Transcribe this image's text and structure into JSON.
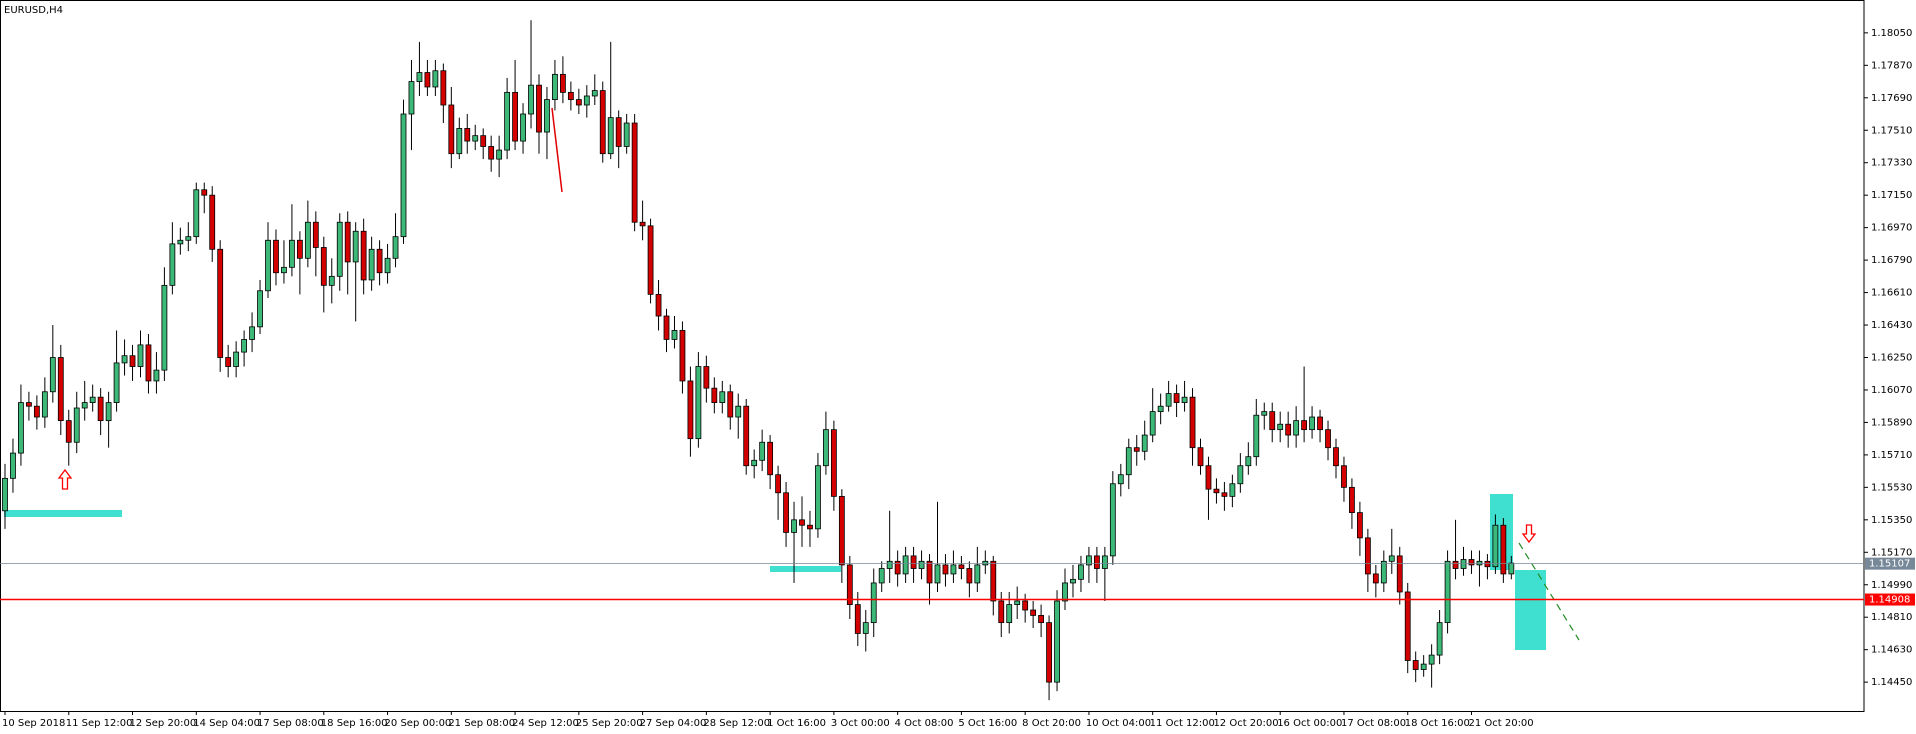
{
  "chart_data": {
    "type": "candlestick",
    "title": "EURUSD,H4",
    "categories": [
      "10 Sep 2018",
      null,
      null,
      null,
      null,
      null,
      null,
      null,
      "11 Sep 12:00",
      null,
      null,
      null,
      null,
      null,
      null,
      null,
      "12 Sep 20:00",
      null,
      null,
      null,
      null,
      null,
      null,
      null,
      "14 Sep 04:00",
      null,
      null,
      null,
      null,
      null,
      null,
      null,
      "17 Sep 08:00",
      null,
      null,
      null,
      null,
      null,
      null,
      null,
      "18 Sep 16:00",
      null,
      null,
      null,
      null,
      null,
      null,
      null,
      "20 Sep 00:00",
      null,
      null,
      null,
      null,
      null,
      null,
      null,
      "21 Sep 08:00",
      null,
      null,
      null,
      null,
      null,
      null,
      null,
      "24 Sep 12:00",
      null,
      null,
      null,
      null,
      null,
      null,
      null,
      "25 Sep 20:00",
      null,
      null,
      null,
      null,
      null,
      null,
      null,
      "27 Sep 04:00",
      null,
      null,
      null,
      null,
      null,
      null,
      null,
      "28 Sep 12:00",
      null,
      null,
      null,
      null,
      null,
      null,
      null,
      "1 Oct 16:00",
      null,
      null,
      null,
      null,
      null,
      null,
      null,
      "3 Oct 00:00",
      null,
      null,
      null,
      null,
      null,
      null,
      null,
      "4 Oct 08:00",
      null,
      null,
      null,
      null,
      null,
      null,
      null,
      "5 Oct 16:00",
      null,
      null,
      null,
      null,
      null,
      null,
      null,
      "8 Oct 20:00",
      null,
      null,
      null,
      null,
      null,
      null,
      null,
      "10 Oct 04:00",
      null,
      null,
      null,
      null,
      null,
      null,
      null,
      "11 Oct 12:00",
      null,
      null,
      null,
      null,
      null,
      null,
      null,
      "12 Oct 20:00",
      null,
      null,
      null,
      null,
      null,
      null,
      null,
      "16 Oct 00:00",
      null,
      null,
      null,
      null,
      null,
      null,
      null,
      "17 Oct 08:00",
      null,
      null,
      null,
      null,
      null,
      null,
      null,
      "18 Oct 16:00",
      null,
      null,
      null,
      null,
      null,
      null,
      null,
      "21 Oct 20:00",
      null,
      null,
      null,
      null,
      null
    ],
    "open": [
      1.154,
      1.1558,
      1.1572,
      1.16,
      1.1598,
      1.1592,
      1.1606,
      1.1625,
      1.159,
      1.1578,
      1.1597,
      1.16,
      1.1603,
      1.159,
      1.16,
      1.1622,
      1.1626,
      1.162,
      1.1632,
      1.1612,
      1.1618,
      1.1665,
      1.1688,
      1.169,
      1.1692,
      1.1718,
      1.1715,
      1.1685,
      1.1625,
      1.162,
      1.1628,
      1.1635,
      1.1642,
      1.1662,
      1.169,
      1.1672,
      1.1675,
      1.169,
      1.168,
      1.17,
      1.1686,
      1.1665,
      1.167,
      1.17,
      1.1678,
      1.1695,
      1.1668,
      1.1685,
      1.1672,
      1.168,
      1.1692,
      1.176,
      1.1778,
      1.1783,
      1.1775,
      1.1784,
      1.1765,
      1.1738,
      1.1752,
      1.1745,
      1.1748,
      1.1742,
      1.1735,
      1.174,
      1.1772,
      1.1745,
      1.176,
      1.1776,
      1.175,
      1.1768,
      1.1782,
      1.1772,
      1.1768,
      1.1765,
      1.177,
      1.1773,
      1.1738,
      1.1758,
      1.1742,
      1.1755,
      1.17,
      1.1698,
      1.166,
      1.1648,
      1.1635,
      1.164,
      1.1612,
      1.158,
      1.162,
      1.1608,
      1.16,
      1.1606,
      1.1592,
      1.1598,
      1.1565,
      1.1568,
      1.1578,
      1.156,
      1.155,
      1.1528,
      1.1535,
      1.1532,
      1.153,
      1.1565,
      1.1585,
      1.1548,
      1.151,
      1.1488,
      1.1472,
      1.1478,
      1.15,
      1.1508,
      1.1512,
      1.1505,
      1.1515,
      1.1508,
      1.1512,
      1.15,
      1.151,
      1.1505,
      1.151,
      1.1508,
      1.15,
      1.151,
      1.1512,
      1.149,
      1.1478,
      1.1488,
      1.149,
      1.1485,
      1.1482,
      1.1478,
      1.1445,
      1.149,
      1.15,
      1.1502,
      1.151,
      1.1515,
      1.1508,
      1.1515,
      1.1555,
      1.156,
      1.1575,
      1.1573,
      1.1582,
      1.1595,
      1.1598,
      1.1605,
      1.16,
      1.1603,
      1.1575,
      1.1565,
      1.1552,
      1.155,
      1.1548,
      1.1555,
      1.1565,
      1.157,
      1.1593,
      1.1595,
      1.1585,
      1.1588,
      1.1582,
      1.159,
      1.1585,
      1.1592,
      1.1585,
      1.1575,
      1.1565,
      1.1553,
      1.1539,
      1.1525,
      1.1505,
      1.15,
      1.1512,
      1.1515,
      1.1495,
      1.1457,
      1.1452,
      1.1455,
      1.146,
      1.1478,
      1.1512,
      1.1508,
      1.1513,
      1.151,
      1.1512,
      1.1509,
      1.1532,
      1.1505
    ],
    "high": [
      1.1566,
      1.158,
      1.161,
      1.1606,
      1.1604,
      1.1614,
      1.1643,
      1.1632,
      1.1596,
      1.1606,
      1.1612,
      1.161,
      1.1608,
      1.1606,
      1.164,
      1.1635,
      1.1632,
      1.164,
      1.1638,
      1.1628,
      1.1675,
      1.17,
      1.1697,
      1.17,
      1.1722,
      1.1722,
      1.172,
      1.169,
      1.1632,
      1.1634,
      1.164,
      1.165,
      1.1668,
      1.17,
      1.1696,
      1.169,
      1.171,
      1.1695,
      1.1712,
      1.1706,
      1.1692,
      1.168,
      1.1705,
      1.1706,
      1.17,
      1.1702,
      1.1692,
      1.169,
      1.1688,
      1.1705,
      1.1768,
      1.179,
      1.18,
      1.179,
      1.179,
      1.1788,
      1.1775,
      1.1758,
      1.176,
      1.1754,
      1.1752,
      1.1748,
      1.1748,
      1.178,
      1.179,
      1.1766,
      1.1812,
      1.1782,
      1.1775,
      1.179,
      1.1792,
      1.1778,
      1.1774,
      1.1776,
      1.1782,
      1.1778,
      1.18,
      1.1762,
      1.176,
      1.176,
      1.1712,
      1.1702,
      1.1668,
      1.1652,
      1.1648,
      1.1645,
      1.162,
      1.1628,
      1.1626,
      1.1614,
      1.1612,
      1.161,
      1.1605,
      1.1602,
      1.1574,
      1.1585,
      1.1582,
      1.1565,
      1.1556,
      1.1545,
      1.1548,
      1.154,
      1.1572,
      1.1595,
      1.159,
      1.1552,
      1.1515,
      1.1495,
      1.1485,
      1.1508,
      1.1512,
      1.154,
      1.1518,
      1.152,
      1.152,
      1.1518,
      1.1516,
      1.1545,
      1.1516,
      1.1518,
      1.1515,
      1.1512,
      1.152,
      1.1518,
      1.1515,
      1.1495,
      1.1495,
      1.1498,
      1.1494,
      1.149,
      1.1488,
      1.1482,
      1.1496,
      1.1508,
      1.151,
      1.1515,
      1.152,
      1.152,
      1.152,
      1.1562,
      1.1566,
      1.158,
      1.1582,
      1.159,
      1.1608,
      1.1605,
      1.1612,
      1.161,
      1.1612,
      1.1608,
      1.158,
      1.157,
      1.1558,
      1.1556,
      1.156,
      1.1572,
      1.1578,
      1.1602,
      1.16,
      1.16,
      1.1595,
      1.1595,
      1.1598,
      1.162,
      1.1598,
      1.1596,
      1.159,
      1.158,
      1.157,
      1.1558,
      1.1545,
      1.153,
      1.151,
      1.1518,
      1.153,
      1.152,
      1.15,
      1.1462,
      1.146,
      1.1466,
      1.1485,
      1.1518,
      1.1535,
      1.152,
      1.1518,
      1.1518,
      1.1516,
      1.1538,
      1.1536,
      1.1515
    ],
    "low": [
      1.153,
      1.155,
      1.1565,
      1.159,
      1.1585,
      1.1586,
      1.16,
      1.1582,
      1.1565,
      1.1572,
      1.159,
      1.1595,
      1.1582,
      1.1575,
      1.1595,
      1.1615,
      1.1612,
      1.1614,
      1.1605,
      1.1605,
      1.1612,
      1.166,
      1.1682,
      1.1684,
      1.1688,
      1.1705,
      1.1678,
      1.1617,
      1.1614,
      1.1614,
      1.162,
      1.1628,
      1.1638,
      1.1658,
      1.1665,
      1.1666,
      1.167,
      1.166,
      1.1675,
      1.167,
      1.165,
      1.1655,
      1.1662,
      1.166,
      1.1645,
      1.166,
      1.1662,
      1.1665,
      1.1666,
      1.1675,
      1.1688,
      1.174,
      1.177,
      1.177,
      1.177,
      1.1755,
      1.173,
      1.1735,
      1.1738,
      1.174,
      1.1735,
      1.1728,
      1.1725,
      1.1735,
      1.174,
      1.1738,
      1.1752,
      1.1738,
      1.1735,
      1.1762,
      1.1766,
      1.1762,
      1.176,
      1.1758,
      1.1765,
      1.1733,
      1.1735,
      1.173,
      1.1738,
      1.1695,
      1.169,
      1.1655,
      1.164,
      1.1628,
      1.163,
      1.1605,
      1.157,
      1.1575,
      1.16,
      1.1594,
      1.1594,
      1.1585,
      1.158,
      1.156,
      1.1558,
      1.1562,
      1.1552,
      1.1535,
      1.152,
      1.15,
      1.152,
      1.152,
      1.1525,
      1.156,
      1.154,
      1.15,
      1.148,
      1.1465,
      1.1462,
      1.147,
      1.1495,
      1.15,
      1.1498,
      1.15,
      1.15,
      1.1502,
      1.1488,
      1.1495,
      1.1498,
      1.15,
      1.1502,
      1.1492,
      1.1495,
      1.1505,
      1.1482,
      1.147,
      1.1472,
      1.148,
      1.1478,
      1.1475,
      1.147,
      1.1435,
      1.144,
      1.1485,
      1.1492,
      1.1495,
      1.15,
      1.15,
      1.149,
      1.151,
      1.1548,
      1.1552,
      1.1565,
      1.1568,
      1.1578,
      1.1588,
      1.1595,
      1.1592,
      1.1595,
      1.1565,
      1.156,
      1.1535,
      1.1544,
      1.154,
      1.1542,
      1.155,
      1.156,
      1.1565,
      1.1585,
      1.1578,
      1.1578,
      1.1575,
      1.1575,
      1.1578,
      1.158,
      1.1578,
      1.1568,
      1.1558,
      1.1545,
      1.153,
      1.1515,
      1.1495,
      1.1492,
      1.1495,
      1.1505,
      1.1488,
      1.145,
      1.1445,
      1.1448,
      1.1442,
      1.1455,
      1.1472,
      1.1502,
      1.1504,
      1.1505,
      1.1498,
      1.1502,
      1.1505,
      1.15,
      1.1502
    ],
    "close": [
      1.1558,
      1.1572,
      1.16,
      1.1598,
      1.1592,
      1.1606,
      1.1625,
      1.159,
      1.1578,
      1.1597,
      1.16,
      1.1603,
      1.159,
      1.16,
      1.1622,
      1.1626,
      1.162,
      1.1632,
      1.1612,
      1.1618,
      1.1665,
      1.1688,
      1.169,
      1.1692,
      1.1718,
      1.1715,
      1.1685,
      1.1625,
      1.162,
      1.1628,
      1.1635,
      1.1642,
      1.1662,
      1.169,
      1.1672,
      1.1675,
      1.169,
      1.168,
      1.17,
      1.1686,
      1.1665,
      1.167,
      1.17,
      1.1678,
      1.1695,
      1.1668,
      1.1685,
      1.1672,
      1.168,
      1.1692,
      1.176,
      1.1778,
      1.1783,
      1.1775,
      1.1784,
      1.1765,
      1.1738,
      1.1752,
      1.1745,
      1.1748,
      1.1742,
      1.1735,
      1.174,
      1.1772,
      1.1745,
      1.176,
      1.1776,
      1.175,
      1.1768,
      1.1782,
      1.1772,
      1.1768,
      1.1765,
      1.177,
      1.1773,
      1.1738,
      1.1758,
      1.1742,
      1.1755,
      1.17,
      1.1698,
      1.166,
      1.1648,
      1.1635,
      1.164,
      1.1612,
      1.158,
      1.162,
      1.1608,
      1.16,
      1.1606,
      1.1592,
      1.1598,
      1.1565,
      1.1568,
      1.1578,
      1.156,
      1.155,
      1.1528,
      1.1535,
      1.1532,
      1.153,
      1.1565,
      1.1585,
      1.1548,
      1.151,
      1.1488,
      1.1472,
      1.1478,
      1.15,
      1.1508,
      1.1512,
      1.1505,
      1.1515,
      1.1508,
      1.1512,
      1.15,
      1.151,
      1.1505,
      1.151,
      1.1508,
      1.15,
      1.151,
      1.1512,
      1.149,
      1.1478,
      1.1488,
      1.149,
      1.1485,
      1.1482,
      1.1478,
      1.1445,
      1.149,
      1.15,
      1.1502,
      1.151,
      1.1515,
      1.1508,
      1.1515,
      1.1555,
      1.156,
      1.1575,
      1.1573,
      1.1582,
      1.1595,
      1.1598,
      1.1605,
      1.16,
      1.1603,
      1.1575,
      1.1565,
      1.1552,
      1.155,
      1.1548,
      1.1555,
      1.1565,
      1.157,
      1.1593,
      1.1595,
      1.1585,
      1.1588,
      1.1582,
      1.159,
      1.1585,
      1.1592,
      1.1585,
      1.1575,
      1.1565,
      1.1553,
      1.1539,
      1.1525,
      1.1505,
      1.15,
      1.1512,
      1.1515,
      1.1495,
      1.1457,
      1.1452,
      1.1455,
      1.146,
      1.1478,
      1.1512,
      1.1508,
      1.1513,
      1.151,
      1.1512,
      1.1509,
      1.1532,
      1.1505,
      1.1511
    ],
    "up_color": "#3cb878",
    "down_color": "#d40000",
    "wick_color": "#000000",
    "ylim": [
      1.1429,
      1.1821
    ],
    "yticks": [
      {
        "value": 1.1805,
        "label": "1.18050"
      },
      {
        "value": 1.1787,
        "label": "1.17870"
      },
      {
        "value": 1.1769,
        "label": "1.17690"
      },
      {
        "value": 1.1751,
        "label": "1.17510"
      },
      {
        "value": 1.1733,
        "label": "1.17330"
      },
      {
        "value": 1.1715,
        "label": "1.17150"
      },
      {
        "value": 1.1697,
        "label": "1.16970"
      },
      {
        "value": 1.1679,
        "label": "1.16790"
      },
      {
        "value": 1.1661,
        "label": "1.16610"
      },
      {
        "value": 1.1643,
        "label": "1.16430"
      },
      {
        "value": 1.1625,
        "label": "1.16250"
      },
      {
        "value": 1.1607,
        "label": "1.16070"
      },
      {
        "value": 1.1589,
        "label": "1.15890"
      },
      {
        "value": 1.1571,
        "label": "1.15710"
      },
      {
        "value": 1.1553,
        "label": "1.15530"
      },
      {
        "value": 1.1535,
        "label": "1.15350"
      },
      {
        "value": 1.1517,
        "label": "1.15170"
      },
      {
        "value": 1.1499,
        "label": "1.14990"
      },
      {
        "value": 1.1481,
        "label": "1.14810"
      },
      {
        "value": 1.1463,
        "label": "1.14630"
      },
      {
        "value": 1.1445,
        "label": "1.14450"
      }
    ],
    "grid": false,
    "price_lines": [
      {
        "value": 1.15107,
        "color": "#778899"
      },
      {
        "value": 1.14908,
        "color": "#ff0000"
      }
    ]
  }
}
